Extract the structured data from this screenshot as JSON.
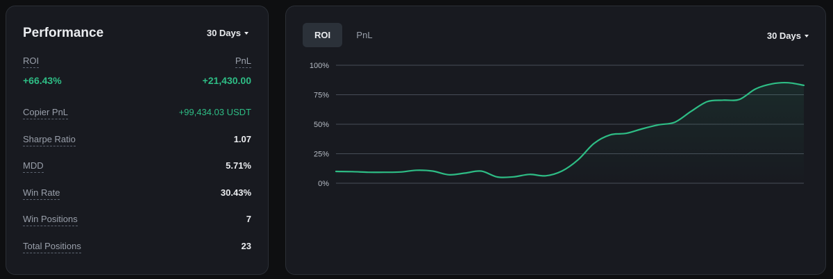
{
  "performance": {
    "title": "Performance",
    "period_label": "30 Days",
    "roi": {
      "label": "ROI",
      "value": "+66.43%"
    },
    "pnl": {
      "label": "PnL",
      "value": "+21,430.00"
    },
    "rows": [
      {
        "label": "Copier PnL",
        "value": "+99,434.03 USDT"
      },
      {
        "label": "Sharpe Ratio",
        "value": "1.07"
      },
      {
        "label": "MDD",
        "value": "5.71%"
      },
      {
        "label": "Win Rate",
        "value": "30.43%"
      },
      {
        "label": "Win Positions",
        "value": "7"
      },
      {
        "label": "Total Positions",
        "value": "23"
      }
    ]
  },
  "chart_panel": {
    "tabs": [
      {
        "label": "ROI",
        "active": true
      },
      {
        "label": "PnL",
        "active": false
      }
    ],
    "period_label": "30 Days"
  },
  "colors": {
    "positive": "#2ebd85",
    "card": "#181a20",
    "background": "#0e0f11",
    "grid": "#474d57"
  },
  "icons": {
    "dropdown": "caret-down-icon"
  },
  "chart_data": {
    "type": "area",
    "title": "",
    "xlabel": "",
    "ylabel": "",
    "ylim": [
      0,
      100
    ],
    "yticks": [
      "100%",
      "75%",
      "50%",
      "25%",
      "0%"
    ],
    "grid": true,
    "series": [
      {
        "values": [
          10,
          9.8,
          9.3,
          9.3,
          9.5,
          11,
          10.3,
          7.2,
          8.6,
          10.3,
          5.3,
          5.4,
          7.5,
          6.3,
          10.3,
          19.8,
          33.8,
          41,
          42.3,
          46.2,
          49.5,
          51.7,
          60.8,
          69.1,
          70.4,
          71,
          79.9,
          84.2,
          85.2,
          83
        ]
      }
    ]
  }
}
